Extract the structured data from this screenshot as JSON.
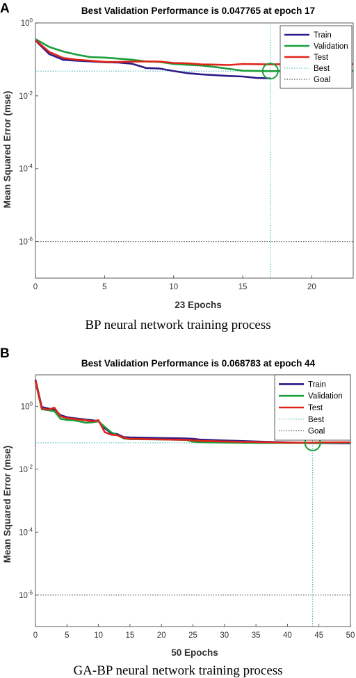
{
  "chart_data": [
    {
      "panel": "A",
      "type": "line",
      "title": "Best Validation Performance is 0.047765 at epoch 17",
      "xlabel": "23 Epochs",
      "ylabel": "Mean Squared Error  (mse)",
      "caption": "BP neural network training process",
      "xlim": [
        0,
        23
      ],
      "ylim": [
        1e-07,
        1
      ],
      "yscale": "log",
      "xticks": [
        0,
        5,
        10,
        15,
        20
      ],
      "yticks": [
        {
          "base": "10",
          "exp": "0",
          "value": 1
        },
        {
          "base": "10",
          "exp": "-2",
          "value": 0.01
        },
        {
          "base": "10",
          "exp": "-4",
          "value": 0.0001
        },
        {
          "base": "10",
          "exp": "-6",
          "value": 1e-06
        }
      ],
      "legend_position": "top-right",
      "series": [
        {
          "name": "Train",
          "color": "#2e1a87",
          "x": [
            0,
            1,
            2,
            3,
            4,
            5,
            6,
            7,
            8,
            9,
            10,
            11,
            12,
            13,
            14,
            15,
            16,
            17
          ],
          "values": [
            0.33,
            0.14,
            0.098,
            0.092,
            0.088,
            0.084,
            0.082,
            0.076,
            0.058,
            0.056,
            0.048,
            0.042,
            0.039,
            0.037,
            0.035,
            0.034,
            0.031,
            0.03
          ]
        },
        {
          "name": "Validation",
          "color": "#1a9e3a",
          "x": [
            0,
            1,
            2,
            3,
            4,
            5,
            6,
            7,
            8,
            9,
            10,
            11,
            12,
            13,
            14,
            15,
            16,
            17,
            18,
            19,
            20,
            21,
            22,
            23
          ],
          "values": [
            0.36,
            0.22,
            0.165,
            0.135,
            0.115,
            0.112,
            0.105,
            0.098,
            0.088,
            0.085,
            0.075,
            0.071,
            0.068,
            0.062,
            0.055,
            0.049,
            0.048,
            0.047765,
            0.0478,
            0.048,
            0.048,
            0.048,
            0.048,
            0.048
          ]
        },
        {
          "name": "Test",
          "color": "#e02418",
          "x": [
            0,
            1,
            2,
            3,
            4,
            5,
            6,
            7,
            8,
            9,
            10,
            11,
            12,
            13,
            14,
            15,
            16,
            17,
            18,
            19,
            20,
            21,
            22,
            23
          ],
          "values": [
            0.34,
            0.16,
            0.11,
            0.098,
            0.092,
            0.086,
            0.085,
            0.087,
            0.088,
            0.087,
            0.08,
            0.078,
            0.073,
            0.072,
            0.07,
            0.075,
            0.074,
            0.073,
            0.074,
            0.074,
            0.074,
            0.074,
            0.074,
            0.074
          ]
        }
      ],
      "best": {
        "name": "Best",
        "color": "#40b0b0",
        "x": 17,
        "y": 0.047765
      },
      "goal": {
        "name": "Goal",
        "color": "#333333",
        "y": 1e-06
      }
    },
    {
      "panel": "B",
      "type": "line",
      "title": "Best Validation Performance is 0.068783 at epoch 44",
      "xlabel": "50 Epochs",
      "ylabel": "Mean Squared Error  (mse)",
      "caption": "GA-BP neural network training process",
      "xlim": [
        0,
        50
      ],
      "ylim": [
        1e-07,
        10
      ],
      "yscale": "log",
      "xticks": [
        0,
        5,
        10,
        15,
        20,
        25,
        30,
        35,
        40,
        45,
        50
      ],
      "yticks": [
        {
          "base": "10",
          "exp": "0",
          "value": 1
        },
        {
          "base": "10",
          "exp": "-2",
          "value": 0.01
        },
        {
          "base": "10",
          "exp": "-4",
          "value": 0.0001
        },
        {
          "base": "10",
          "exp": "-6",
          "value": 1e-06
        }
      ],
      "legend_position": "top-right",
      "series": [
        {
          "name": "Train",
          "color": "#2e1a87",
          "x": [
            0,
            1,
            2,
            3,
            4,
            5,
            6,
            7,
            8,
            9,
            10,
            11,
            12,
            13,
            14,
            15,
            20,
            24,
            25,
            26,
            30,
            35,
            40,
            44,
            45,
            50
          ],
          "values": [
            7,
            0.95,
            0.85,
            0.78,
            0.52,
            0.45,
            0.42,
            0.4,
            0.38,
            0.36,
            0.34,
            0.2,
            0.14,
            0.13,
            0.105,
            0.102,
            0.098,
            0.095,
            0.092,
            0.088,
            0.082,
            0.076,
            0.071,
            0.068,
            0.068,
            0.067
          ]
        },
        {
          "name": "Validation",
          "color": "#1a9e3a",
          "x": [
            0,
            1,
            2,
            3,
            4,
            5,
            6,
            7,
            8,
            9,
            10,
            11,
            12,
            13,
            14,
            15,
            20,
            24,
            25,
            26,
            30,
            35,
            40,
            44,
            45,
            50
          ],
          "values": [
            6,
            0.8,
            0.75,
            0.7,
            0.4,
            0.37,
            0.36,
            0.33,
            0.3,
            0.31,
            0.33,
            0.22,
            0.15,
            0.12,
            0.095,
            0.09,
            0.088,
            0.085,
            0.075,
            0.072,
            0.07,
            0.069,
            0.069,
            0.068783,
            0.069,
            0.07
          ]
        },
        {
          "name": "Test",
          "color": "#e02418",
          "x": [
            0,
            1,
            2,
            3,
            4,
            5,
            6,
            7,
            8,
            9,
            10,
            11,
            12,
            13,
            14,
            15,
            20,
            24,
            25,
            26,
            30,
            35,
            40,
            44,
            45,
            50
          ],
          "values": [
            6.5,
            0.85,
            0.78,
            0.9,
            0.48,
            0.42,
            0.4,
            0.38,
            0.36,
            0.33,
            0.36,
            0.15,
            0.125,
            0.12,
            0.1,
            0.092,
            0.088,
            0.086,
            0.083,
            0.08,
            0.076,
            0.073,
            0.07,
            0.07,
            0.071,
            0.072
          ]
        }
      ],
      "best": {
        "name": "Best",
        "color": "#40b0b0",
        "x": 44,
        "y": 0.068783
      },
      "goal": {
        "name": "Goal",
        "color": "#333333",
        "y": 1e-06
      }
    }
  ]
}
